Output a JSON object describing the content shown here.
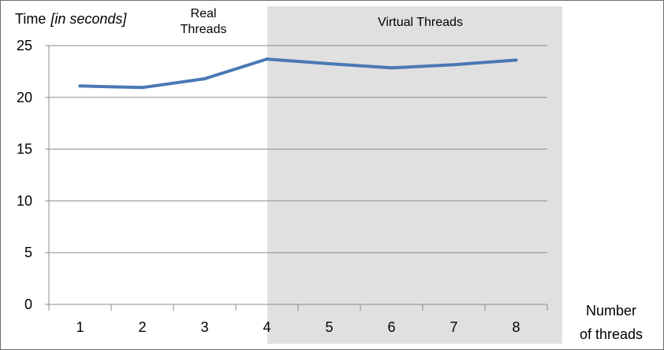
{
  "chart_data": {
    "type": "line",
    "title": "",
    "ylabel_prefix": "Time",
    "ylabel_unit": "[in seconds]",
    "xlabel_line1": "Number",
    "xlabel_line2": "of threads",
    "categories": [
      "1",
      "2",
      "3",
      "4",
      "5",
      "6",
      "7",
      "8"
    ],
    "series": [
      {
        "name": "Time",
        "values": [
          21.1,
          20.95,
          21.8,
          23.7,
          23.25,
          22.85,
          23.15,
          23.6
        ]
      }
    ],
    "ylim": [
      0,
      25
    ],
    "yticks": [
      0,
      5,
      10,
      15,
      20,
      25
    ],
    "grid": true,
    "regions": [
      {
        "label_line1": "Real",
        "label_line2": "Threads",
        "from_category": "1",
        "to_category": "4",
        "shaded": false
      },
      {
        "label": "Virtual Threads",
        "from_category": "4",
        "to_category": "8",
        "shaded": true
      }
    ],
    "colors": {
      "line": "#4a78b5",
      "shade": "#e0e0e0",
      "grid": "#8c8c8c",
      "axis": "#8c8c8c"
    }
  }
}
